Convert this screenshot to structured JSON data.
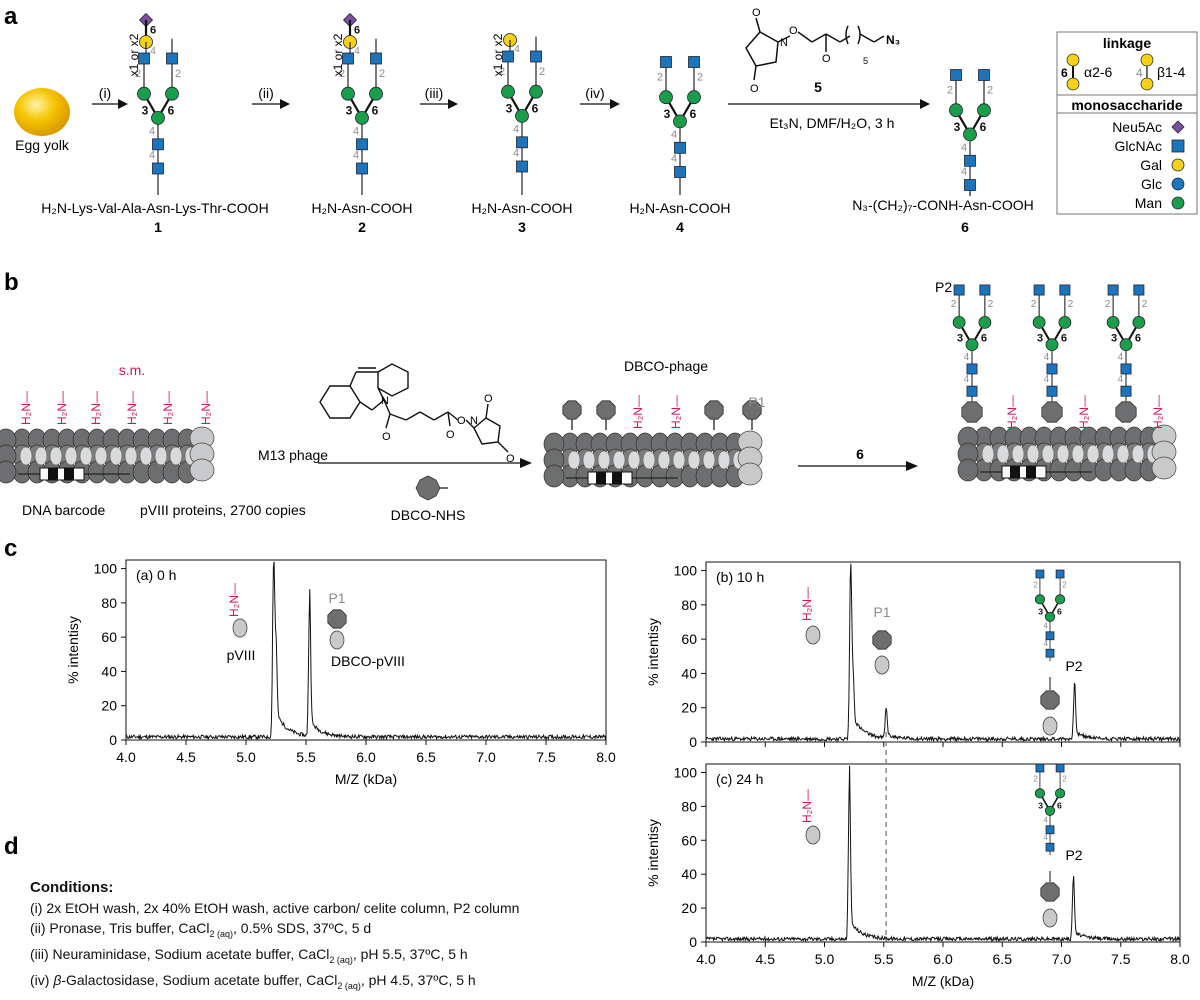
{
  "panels": {
    "a": "a",
    "b": "b",
    "c": "c",
    "d": "d"
  },
  "scheme_a": {
    "egg_label": "Egg yolk",
    "steps": [
      "(i)",
      "(ii)",
      "(iii)",
      "(iv)"
    ],
    "repeat_label": "x1 or x2",
    "compounds": [
      {
        "num": "1",
        "label": "H₂N-Lys-Val-Ala-Asn-Lys-Thr-COOH"
      },
      {
        "num": "2",
        "label": "H₂N-Asn-COOH"
      },
      {
        "num": "3",
        "label": "H₂N-Asn-COOH"
      },
      {
        "num": "4",
        "label": "H₂N-Asn-COOH"
      },
      {
        "num": "6",
        "label": "N₃-(CH₂)₇-CONH-Asn-COOH"
      }
    ],
    "reagent_num": "5",
    "reagent_conditions": "Et₃N, DMF/H₂O, 3 h",
    "reagent_azide": "N₃",
    "reagent_sub": "5"
  },
  "legend": {
    "linkage_title": "linkage",
    "link1": "α2-6",
    "link2": "β1-4",
    "mono_title": "monosaccharide",
    "items": [
      {
        "name": "Neu5Ac",
        "color": "#7b4f9d",
        "shape": "diamond"
      },
      {
        "name": "GlcNAc",
        "color": "#1b75bc",
        "shape": "square"
      },
      {
        "name": "Gal",
        "color": "#f7d117",
        "shape": "circle"
      },
      {
        "name": "Glc",
        "color": "#1b75bc",
        "shape": "circle"
      },
      {
        "name": "Man",
        "color": "#1a9e4a",
        "shape": "circle"
      }
    ]
  },
  "scheme_b": {
    "sm_label": "s.m.",
    "phage_label": "M13 phage",
    "barcode_label": "DNA barcode",
    "pviii_label": "pVIII proteins, 2700 copies",
    "dbco_nhs_label": "DBCO-NHS",
    "dbco_phage_label": "DBCO-phage",
    "p1_label": "P1",
    "p2_label": "P2",
    "reagent6": "6",
    "amine": "H₂N"
  },
  "colors": {
    "amine_red": "#d4145a",
    "gray_label": "#8c8c8c",
    "phage_dark": "#6d6e70",
    "phage_light": "#c8c9ca"
  },
  "chart_data": [
    {
      "type": "line",
      "panel_label": "(a) 0 h",
      "xlabel": "M/Z (kDa)",
      "ylabel": "% intentisy",
      "xlim": [
        4.0,
        8.0
      ],
      "ylim": [
        0,
        105
      ],
      "xticks": [
        "4.0",
        "4.5",
        "5.0",
        "5.5",
        "6.0",
        "6.5",
        "7.0",
        "7.5",
        "8.0"
      ],
      "yticks": [
        "0",
        "20",
        "40",
        "60",
        "80",
        "100"
      ],
      "peaks": [
        {
          "x": 5.23,
          "y": 100,
          "label": "pVIII"
        },
        {
          "x": 5.25,
          "y": 40
        },
        {
          "x": 5.53,
          "y": 77,
          "label": "DBCO-pVIII"
        }
      ],
      "annotations": [
        "P1"
      ]
    },
    {
      "type": "line",
      "panel_label": "(b) 10 h",
      "xlabel": "",
      "ylabel": "% intentisy",
      "xlim": [
        4.0,
        8.0
      ],
      "ylim": [
        0,
        105
      ],
      "yticks": [
        "0",
        "20",
        "40",
        "60",
        "80",
        "100"
      ],
      "peaks": [
        {
          "x": 5.22,
          "y": 98
        },
        {
          "x": 5.24,
          "y": 28
        },
        {
          "x": 5.52,
          "y": 17
        },
        {
          "x": 7.11,
          "y": 32,
          "label": "P2"
        }
      ],
      "annotations": [
        "P1",
        "P2"
      ]
    },
    {
      "type": "line",
      "panel_label": "(c) 24 h",
      "xlabel": "M/Z (kDa)",
      "ylabel": "% intentisy",
      "xlim": [
        4.0,
        8.0
      ],
      "ylim": [
        0,
        105
      ],
      "xticks": [
        "4.0",
        "4.5",
        "5.0",
        "5.5",
        "6.0",
        "6.5",
        "7.0",
        "7.5",
        "8.0"
      ],
      "yticks": [
        "0",
        "20",
        "40",
        "60",
        "80",
        "100"
      ],
      "peaks": [
        {
          "x": 5.21,
          "y": 93
        },
        {
          "x": 7.1,
          "y": 35,
          "label": "P2"
        }
      ],
      "annotations": [
        "P2"
      ]
    }
  ],
  "conditions": {
    "title": "Conditions:",
    "i": "(i) 2x EtOH wash, 2x 40% EtOH wash, active carbon/ celite column, P2 column",
    "ii_a": "(ii) Pronase, Tris buffer, CaCl",
    "ii_sub": "2 (aq)",
    "ii_b": ",  0.5% SDS, 37ºC, 5 d",
    "iii_a": "(iii) Neuraminidase, Sodium acetate buffer, CaCl",
    "iii_sub": "2 (aq)",
    "iii_b": ", pH 5.5, 37ºC, 5 h",
    "iv_a": "(iv) ",
    "iv_beta": "β",
    "iv_b": "-Galactosidase, Sodium acetate buffer, CaCl",
    "iv_sub": "2 (aq)",
    "iv_c": ", pH 4.5, 37ºC, 5 h"
  }
}
